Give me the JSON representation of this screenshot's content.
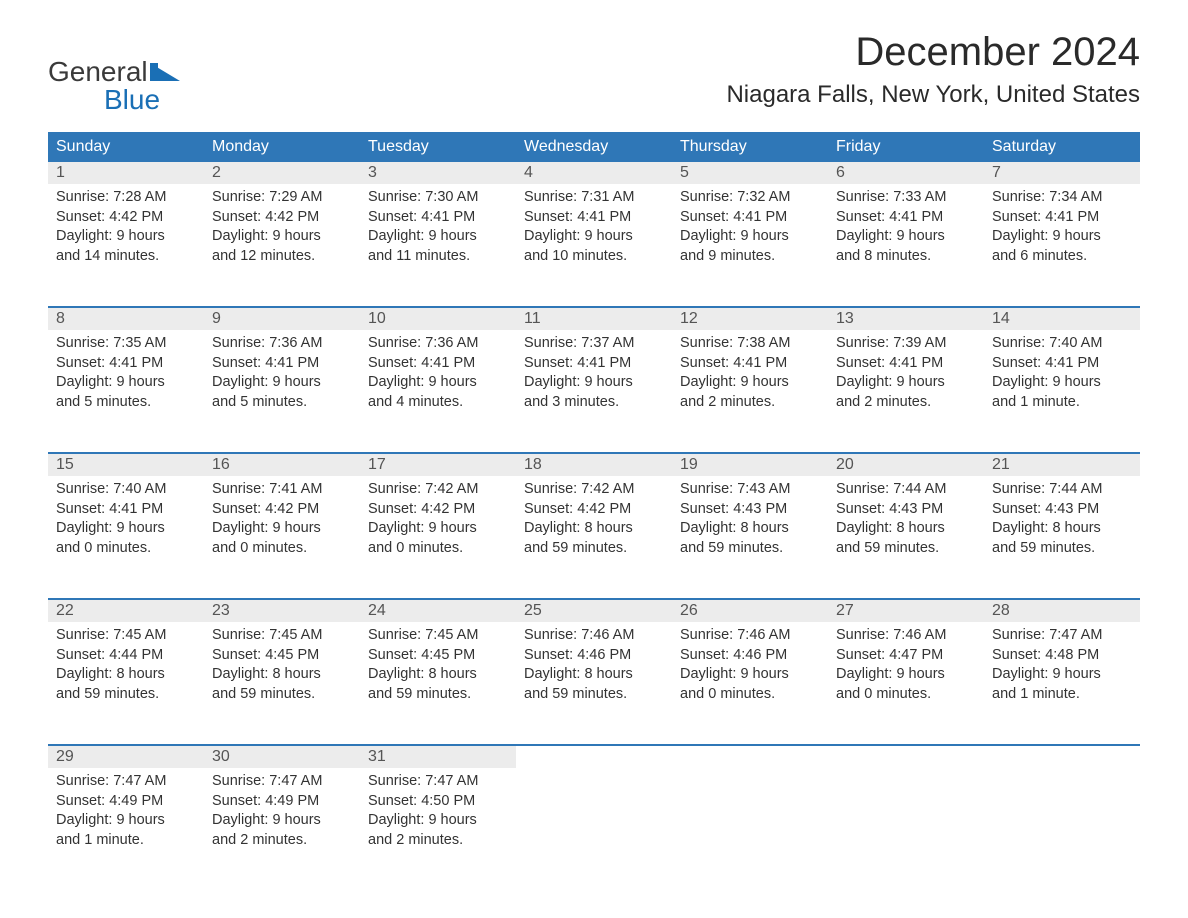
{
  "logo": {
    "word1": "General",
    "word2": "Blue",
    "icon_color": "#1a6fb5"
  },
  "title": "December 2024",
  "location": "Niagara Falls, New York, United States",
  "colors": {
    "header_bg": "#2f77b7",
    "header_text": "#ffffff",
    "daynum_bg": "#ececec",
    "daynum_text": "#555555",
    "body_text": "#333333",
    "week_divider": "#2f77b7",
    "page_bg": "#ffffff"
  },
  "fonts": {
    "title_size_pt": 30,
    "location_size_pt": 18,
    "dayhead_size_pt": 12,
    "body_size_pt": 11
  },
  "day_headers": [
    "Sunday",
    "Monday",
    "Tuesday",
    "Wednesday",
    "Thursday",
    "Friday",
    "Saturday"
  ],
  "weeks": [
    [
      {
        "date": "1",
        "sunrise": "7:28 AM",
        "sunset": "4:42 PM",
        "daylight": "9 hours and 14 minutes."
      },
      {
        "date": "2",
        "sunrise": "7:29 AM",
        "sunset": "4:42 PM",
        "daylight": "9 hours and 12 minutes."
      },
      {
        "date": "3",
        "sunrise": "7:30 AM",
        "sunset": "4:41 PM",
        "daylight": "9 hours and 11 minutes."
      },
      {
        "date": "4",
        "sunrise": "7:31 AM",
        "sunset": "4:41 PM",
        "daylight": "9 hours and 10 minutes."
      },
      {
        "date": "5",
        "sunrise": "7:32 AM",
        "sunset": "4:41 PM",
        "daylight": "9 hours and 9 minutes."
      },
      {
        "date": "6",
        "sunrise": "7:33 AM",
        "sunset": "4:41 PM",
        "daylight": "9 hours and 8 minutes."
      },
      {
        "date": "7",
        "sunrise": "7:34 AM",
        "sunset": "4:41 PM",
        "daylight": "9 hours and 6 minutes."
      }
    ],
    [
      {
        "date": "8",
        "sunrise": "7:35 AM",
        "sunset": "4:41 PM",
        "daylight": "9 hours and 5 minutes."
      },
      {
        "date": "9",
        "sunrise": "7:36 AM",
        "sunset": "4:41 PM",
        "daylight": "9 hours and 5 minutes."
      },
      {
        "date": "10",
        "sunrise": "7:36 AM",
        "sunset": "4:41 PM",
        "daylight": "9 hours and 4 minutes."
      },
      {
        "date": "11",
        "sunrise": "7:37 AM",
        "sunset": "4:41 PM",
        "daylight": "9 hours and 3 minutes."
      },
      {
        "date": "12",
        "sunrise": "7:38 AM",
        "sunset": "4:41 PM",
        "daylight": "9 hours and 2 minutes."
      },
      {
        "date": "13",
        "sunrise": "7:39 AM",
        "sunset": "4:41 PM",
        "daylight": "9 hours and 2 minutes."
      },
      {
        "date": "14",
        "sunrise": "7:40 AM",
        "sunset": "4:41 PM",
        "daylight": "9 hours and 1 minute."
      }
    ],
    [
      {
        "date": "15",
        "sunrise": "7:40 AM",
        "sunset": "4:41 PM",
        "daylight": "9 hours and 0 minutes."
      },
      {
        "date": "16",
        "sunrise": "7:41 AM",
        "sunset": "4:42 PM",
        "daylight": "9 hours and 0 minutes."
      },
      {
        "date": "17",
        "sunrise": "7:42 AM",
        "sunset": "4:42 PM",
        "daylight": "9 hours and 0 minutes."
      },
      {
        "date": "18",
        "sunrise": "7:42 AM",
        "sunset": "4:42 PM",
        "daylight": "8 hours and 59 minutes."
      },
      {
        "date": "19",
        "sunrise": "7:43 AM",
        "sunset": "4:43 PM",
        "daylight": "8 hours and 59 minutes."
      },
      {
        "date": "20",
        "sunrise": "7:44 AM",
        "sunset": "4:43 PM",
        "daylight": "8 hours and 59 minutes."
      },
      {
        "date": "21",
        "sunrise": "7:44 AM",
        "sunset": "4:43 PM",
        "daylight": "8 hours and 59 minutes."
      }
    ],
    [
      {
        "date": "22",
        "sunrise": "7:45 AM",
        "sunset": "4:44 PM",
        "daylight": "8 hours and 59 minutes."
      },
      {
        "date": "23",
        "sunrise": "7:45 AM",
        "sunset": "4:45 PM",
        "daylight": "8 hours and 59 minutes."
      },
      {
        "date": "24",
        "sunrise": "7:45 AM",
        "sunset": "4:45 PM",
        "daylight": "8 hours and 59 minutes."
      },
      {
        "date": "25",
        "sunrise": "7:46 AM",
        "sunset": "4:46 PM",
        "daylight": "8 hours and 59 minutes."
      },
      {
        "date": "26",
        "sunrise": "7:46 AM",
        "sunset": "4:46 PM",
        "daylight": "9 hours and 0 minutes."
      },
      {
        "date": "27",
        "sunrise": "7:46 AM",
        "sunset": "4:47 PM",
        "daylight": "9 hours and 0 minutes."
      },
      {
        "date": "28",
        "sunrise": "7:47 AM",
        "sunset": "4:48 PM",
        "daylight": "9 hours and 1 minute."
      }
    ],
    [
      {
        "date": "29",
        "sunrise": "7:47 AM",
        "sunset": "4:49 PM",
        "daylight": "9 hours and 1 minute."
      },
      {
        "date": "30",
        "sunrise": "7:47 AM",
        "sunset": "4:49 PM",
        "daylight": "9 hours and 2 minutes."
      },
      {
        "date": "31",
        "sunrise": "7:47 AM",
        "sunset": "4:50 PM",
        "daylight": "9 hours and 2 minutes."
      },
      null,
      null,
      null,
      null
    ]
  ],
  "labels": {
    "sunrise": "Sunrise:",
    "sunset": "Sunset:",
    "daylight": "Daylight:"
  }
}
